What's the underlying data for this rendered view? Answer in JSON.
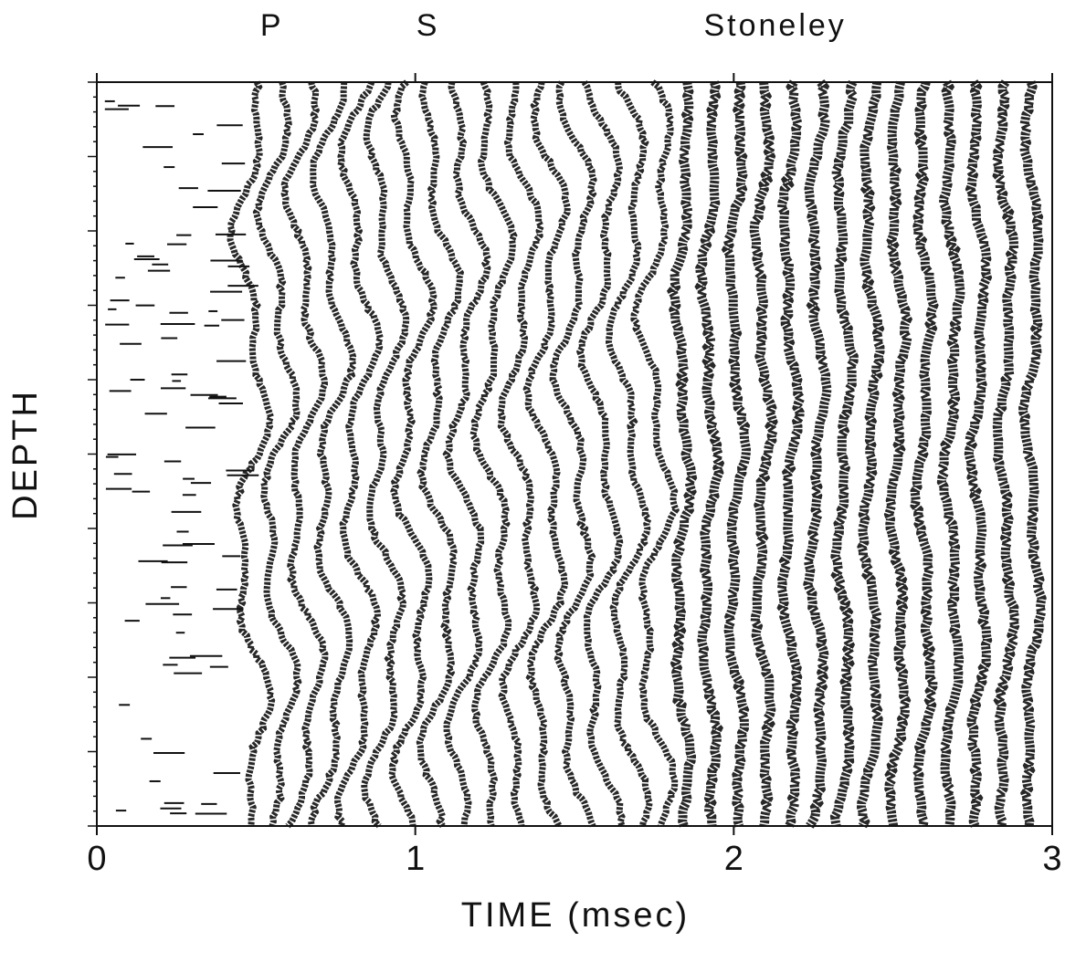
{
  "chart_data": {
    "type": "waveform",
    "xlabel": "TIME (msec)",
    "ylabel": "DEPTH",
    "xlim": [
      0,
      3
    ],
    "xticks": [
      0,
      1,
      2,
      3
    ],
    "annotations": [
      {
        "text": "P",
        "x": 0.55
      },
      {
        "text": "S",
        "x": 1.04
      },
      {
        "text": "Stoneley",
        "x": 2.13
      }
    ],
    "color": "#111111"
  }
}
